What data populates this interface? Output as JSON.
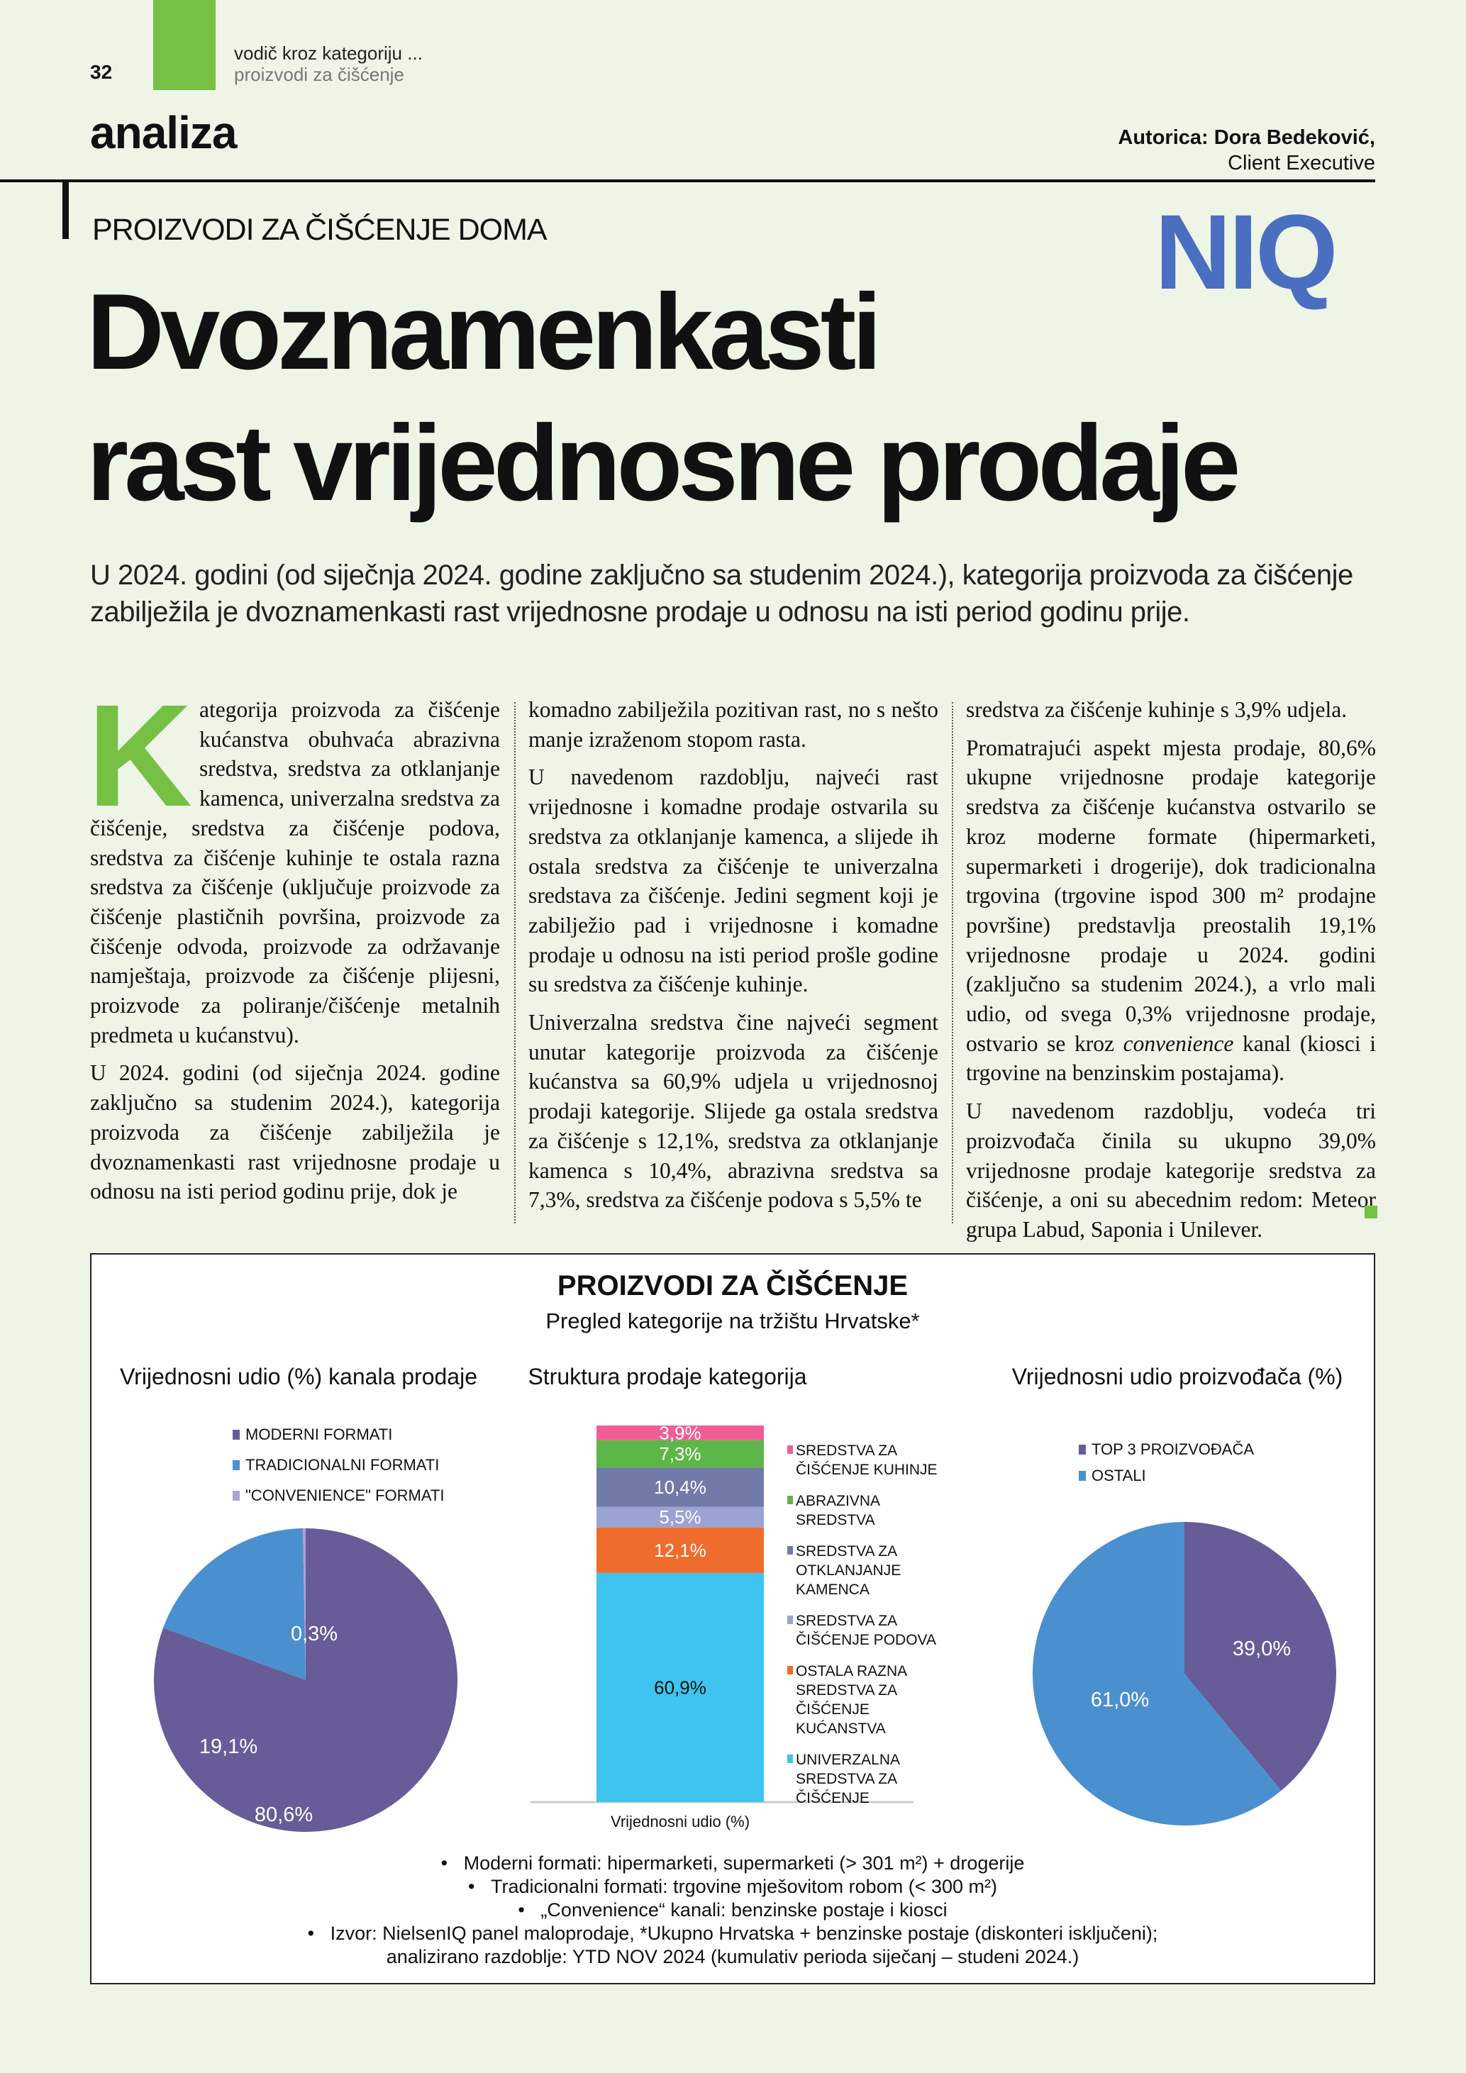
{
  "header": {
    "page_number": "32",
    "section_line1": "vodič kroz kategoriju ...",
    "section_line2": "proizvodi za čišćenje",
    "rubric": "analiza",
    "author": "Autorica: Dora Bedeković,",
    "author_role": "Client Executive",
    "logo": "NIQ"
  },
  "article": {
    "kicker": "PROIZVODI ZA ČIŠĆENJE DOMA",
    "title_line1": "Dvoznamenkasti",
    "title_line2": "rast vrijednosne prodaje",
    "lead": "U 2024. godini (od siječnja 2024. godine zaključno sa studenim 2024.), kategorija proizvoda za čišćenje zabilježila je dvoznamenkasti rast vrijednosne prodaje u odnosu na isti period godinu prije.",
    "drop_cap": "K",
    "col1": [
      "ategorija proizvoda za čišćenje kućanstva obuhvaća abrazivna sredstva, sredstva za otklanjanje kamenca, univerzalna sredstva za čišćenje, sredstva za čišćenje podova, sredstva za čišćenje kuhinje te ostala razna sredstva za čišćenje (uključuje proizvode za čišćenje plastičnih površina, proizvode za čišćenje odvoda, proizvode za održavanje namještaja, proizvode za čišćenje plijesni, proizvode za poliranje/čišćenje metalnih predmeta u kućanstvu).",
      "U 2024. godini (od siječnja 2024. godine zaključno sa studenim 2024.), kategorija proizvoda za čišćenje zabilježila je dvoznamenkasti rast vrijednosne prodaje u odnosu na isti period godinu prije, dok je"
    ],
    "col2": [
      "komadno zabilježila pozitivan rast, no s nešto manje izraženom stopom rasta.",
      "U navedenom razdoblju, najveći rast vrijednosne i komadne prodaje ostvarila su sredstva za otklanjanje kamenca, a slijede ih ostala sredstva za čišćenje te univerzalna sredstava za čišćenje. Jedini segment koji je zabilježio pad i vrijednosne i komadne prodaje u odnosu na isti period prošle godine su sredstva za čišćenje kuhinje.",
      "Univerzalna sredstva čine najveći segment unutar kategorije proizvoda za čišćenje kućanstva sa 60,9% udjela u vrijednosnoj prodaji kategorije. Slijede ga ostala sredstva za čišćenje s 12,1%, sredstva za otklanjanje kamenca s 10,4%, abrazivna sredstva sa 7,3%, sredstva za čišćenje podova s 5,5% te"
    ],
    "col3_p1": "sredstva za čišćenje kuhinje s 3,9% udjela.",
    "col3_p2a": "Promatrajući aspekt mjesta prodaje, 80,6% ukupne vrijednosne prodaje kategorije sredstva za čišćenje kućanstva ostvarilo se kroz moderne formate (hipermarketi, supermarketi i drogerije), dok tradicionalna trgovina (trgovine ispod 300 m² prodajne površine) predstavlja preostalih 19,1% vrijednosne prodaje u 2024. godini (zaključno sa studenim 2024.), a vrlo mali udio, od svega 0,3% vrijednosne prodaje, ostvario se kroz ",
    "col3_p2_italic": "convenience",
    "col3_p2b": " kanal (kiosci i trgovine na benzinskim postajama).",
    "col3_p3": "U navedenom razdoblju, vodeća tri proizvođača činila su ukupno 39,0% vrijednosne prodaje kategorije sredstva za čišćenje, a oni su abecednim redom: Meteor grupa Labud, Saponia i Unilever."
  },
  "infographic": {
    "title": "PROIZVODI ZA ČIŠĆENJE",
    "subtitle": "Pregled kategorije na tržištu Hrvatske*",
    "footnotes": [
      "Moderni formati: hipermarketi, supermarketi (> 301 m²) + drogerije",
      "Tradicionalni formati: trgovine mješovitom robom (< 300 m²)",
      "„Convenience“ kanali: benzinske postaje i kiosci",
      "Izvor: NielsenIQ panel maloprodaje, *Ukupno Hrvatska + benzinske postaje (diskonteri isključeni);",
      "analizirano razdoblje: YTD NOV 2024 (kumulativ perioda siječanj – studeni 2024.)"
    ]
  },
  "chart_data": [
    {
      "type": "pie",
      "title": "Vrijednosni udio (%) kanala prodaje",
      "legend_position": "top",
      "categories": [
        "MODERNI FORMATI",
        "TRADICIONALNI FORMATI",
        "\"CONVENIENCE\" FORMATI"
      ],
      "values": [
        80.6,
        19.1,
        0.3
      ],
      "labels": [
        "80,6%",
        "19,1%",
        "0,3%"
      ],
      "colors": [
        "#675c98",
        "#4a90cf",
        "#a9a3d4"
      ]
    },
    {
      "type": "bar",
      "stacked": true,
      "title": "Struktura prodaje kategorija",
      "xlabel": "Vrijednosni udio (%)",
      "legend_position": "right",
      "categories": [
        "UNIVERZALNA SREDSTVA ZA ČIŠĆENJE",
        "OSTALA RAZNA SREDSTVA ZA ČIŠĆENJE KUĆANSTVA",
        "SREDSTVA ZA ČIŠĆENJE PODOVA",
        "SREDSTVA ZA OTKLANJANJE KAMENCA",
        "ABRAZIVNA SREDSTVA",
        "SREDSTVA ZA ČIŠĆENJE KUHINJE"
      ],
      "values": [
        60.9,
        12.1,
        5.5,
        10.4,
        7.3,
        3.9
      ],
      "labels": [
        "60,9%",
        "12,1%",
        "5,5%",
        "10,4%",
        "7,3%",
        "3,9%"
      ],
      "colors": [
        "#3ec4ee",
        "#ef6c2c",
        "#9ba3d3",
        "#727aa8",
        "#5db648",
        "#ef5e96"
      ],
      "legend_order": [
        "SREDSTVA ZA ČIŠĆENJE KUHINJE",
        "ABRAZIVNA SREDSTVA",
        "SREDSTVA ZA OTKLANJANJE KAMENCA",
        "SREDSTVA ZA ČIŠĆENJE PODOVA",
        "OSTALA RAZNA SREDSTVA ZA ČIŠĆENJE KUĆANSTVA",
        "UNIVERZALNA SREDSTVA ZA ČIŠĆENJE"
      ]
    },
    {
      "type": "pie",
      "title": "Vrijednosni udio proizvođača (%)",
      "legend_position": "top",
      "categories": [
        "TOP 3 PROIZVOĐAČA",
        "OSTALI"
      ],
      "values": [
        39.0,
        61.0
      ],
      "labels": [
        "39,0%",
        "61,0%"
      ],
      "colors": [
        "#675c98",
        "#4a90cf"
      ]
    }
  ]
}
